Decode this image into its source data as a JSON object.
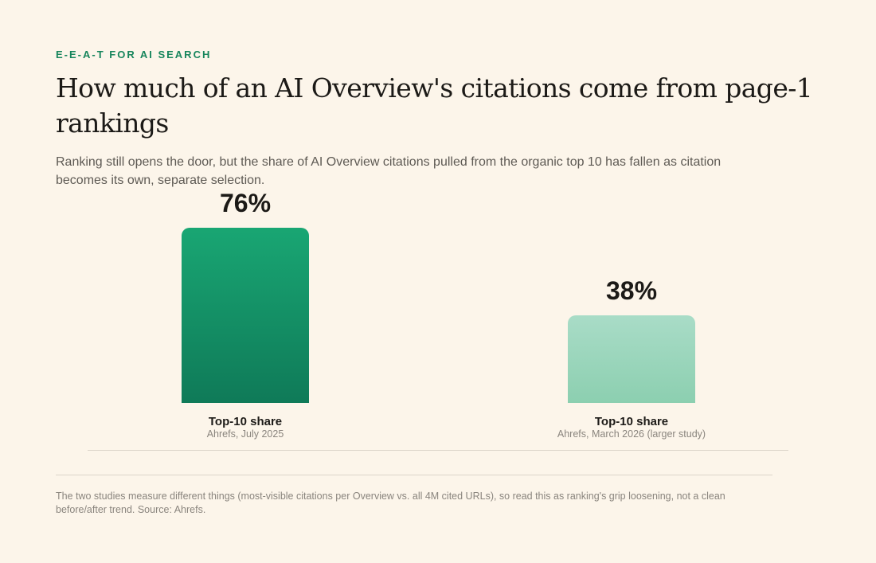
{
  "eyebrow": "E-E-A-T FOR AI SEARCH",
  "title": "How much of an AI Overview's citations come from page-1 rankings",
  "subtitle": "Ranking still opens the door, but the share of AI Overview citations pulled from the organic top 10 has fallen as citation becomes its own, separate selection.",
  "footnote": "The two studies measure different things (most-visible citations per Overview vs. all 4M cited URLs), so read this as ranking's grip loosening, not a clean before/after trend. Source: Ahrefs.",
  "colors": {
    "background": "#fcf5ea",
    "accent": "#17855c",
    "bar_dark": "#0f7a58",
    "bar_light": "#8ccfb0"
  },
  "chart_data": {
    "type": "bar",
    "categories": [
      "Top-10 share",
      "Top-10 share"
    ],
    "sources": [
      "Ahrefs, July 2025",
      "Ahrefs, March 2026 (larger study)"
    ],
    "values": [
      76,
      38
    ],
    "value_labels": [
      "76%",
      "38%"
    ],
    "ylim": [
      0,
      76
    ],
    "grid": false,
    "legend": "none"
  }
}
